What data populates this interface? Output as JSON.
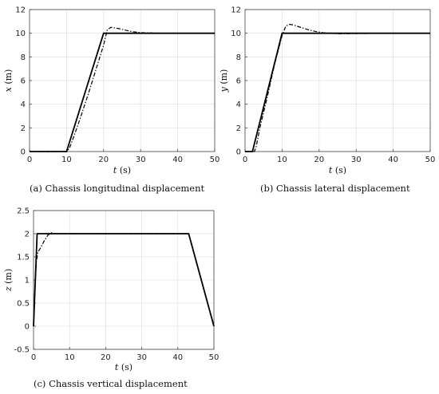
{
  "chart_data": [
    {
      "type": "line",
      "caption": "(a)  Chassis longitudinal displacement",
      "xlabel_var": "t",
      "xlabel_unit": " (s)",
      "ylabel_var": "x",
      "ylabel_unit": " (m)",
      "xlim": [
        0,
        50
      ],
      "ylim": [
        0,
        12
      ],
      "xticks": [
        0,
        10,
        20,
        30,
        40,
        50
      ],
      "yticks": [
        0,
        2,
        4,
        6,
        8,
        10,
        12
      ],
      "grid": true,
      "series": [
        {
          "style": "solid",
          "x": [
            0,
            10,
            20,
            50
          ],
          "y": [
            0,
            0,
            10,
            10
          ]
        },
        {
          "style": "dashdot",
          "x": [
            0,
            10,
            10.8,
            12,
            14,
            16,
            18,
            20,
            21,
            22,
            24,
            26,
            28,
            30,
            33,
            36,
            40,
            50
          ],
          "y": [
            0,
            0,
            0.3,
            1.3,
            3.1,
            5.0,
            7.0,
            9.0,
            10.3,
            10.5,
            10.4,
            10.25,
            10.12,
            10.05,
            10.02,
            10.0,
            10.0,
            10.0
          ]
        }
      ]
    },
    {
      "type": "line",
      "caption": "(b)  Chassis lateral displacement",
      "xlabel_var": "t",
      "xlabel_unit": " (s)",
      "ylabel_var": "y",
      "ylabel_unit": " (m)",
      "xlim": [
        0,
        50
      ],
      "ylim": [
        0,
        12
      ],
      "xticks": [
        0,
        10,
        20,
        30,
        40,
        50
      ],
      "yticks": [
        0,
        2,
        4,
        6,
        8,
        10,
        12
      ],
      "grid": true,
      "series": [
        {
          "style": "solid",
          "x": [
            0,
            2,
            10,
            50
          ],
          "y": [
            0,
            0,
            10,
            10
          ]
        },
        {
          "style": "dashdot",
          "x": [
            0,
            2.5,
            3,
            4,
            6,
            8,
            10,
            11,
            12,
            13,
            15,
            17,
            19,
            21,
            23,
            25,
            30,
            40,
            50
          ],
          "y": [
            0,
            0,
            0.4,
            2.0,
            4.6,
            7.4,
            9.8,
            10.6,
            10.75,
            10.7,
            10.5,
            10.3,
            10.15,
            10.05,
            10.0,
            9.95,
            9.97,
            10.0,
            10.0
          ]
        }
      ]
    },
    {
      "type": "line",
      "caption": "(c)  Chassis vertical displacement",
      "xlabel_var": "t",
      "xlabel_unit": " (s)",
      "ylabel_var": "z",
      "ylabel_unit": " (m)",
      "xlim": [
        0,
        50
      ],
      "ylim": [
        -0.5,
        2.5
      ],
      "xticks": [
        0,
        10,
        20,
        30,
        40,
        50
      ],
      "yticks": [
        -0.5,
        0,
        0.5,
        1,
        1.5,
        2,
        2.5
      ],
      "grid": true,
      "series": [
        {
          "style": "solid",
          "x": [
            0,
            1,
            43,
            50
          ],
          "y": [
            0,
            2,
            2,
            0
          ]
        },
        {
          "style": "dashdot",
          "x": [
            0,
            0.4,
            0.8,
            1.2,
            2,
            3,
            4,
            5,
            6,
            8,
            10,
            20,
            30,
            40,
            43,
            50
          ],
          "y": [
            0,
            0.8,
            1.4,
            1.6,
            1.7,
            1.85,
            1.97,
            2.02,
            2.0,
            2.0,
            2.0,
            2.0,
            2.0,
            2.0,
            2.0,
            0
          ]
        }
      ]
    }
  ]
}
